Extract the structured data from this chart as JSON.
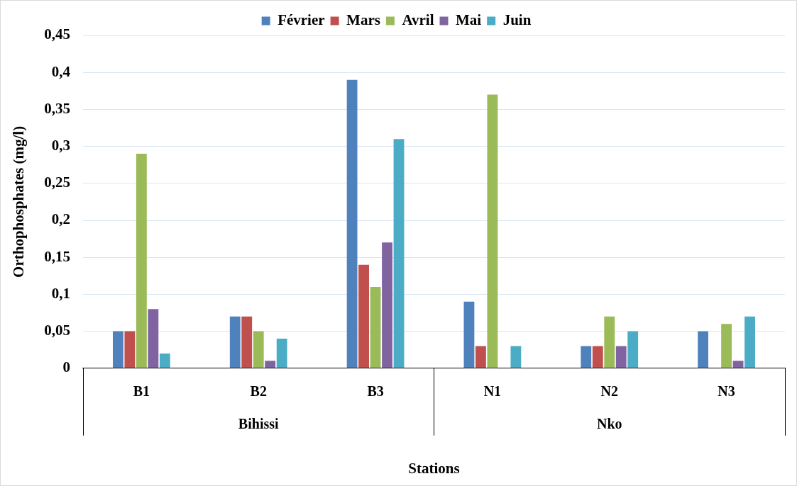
{
  "chart_data": {
    "type": "bar",
    "xlabel": "Stations",
    "ylabel": "Orthophosphates (mg/l)",
    "categories": [
      "B1",
      "B2",
      "B3",
      "N1",
      "N2",
      "N3"
    ],
    "series": [
      {
        "name": "Février",
        "color": "#4f81bd",
        "values": [
          0.05,
          0.07,
          0.39,
          0.09,
          0.03,
          0.05
        ]
      },
      {
        "name": "Mars",
        "color": "#c0504d",
        "values": [
          0.05,
          0.07,
          0.14,
          0.03,
          0.03,
          null
        ]
      },
      {
        "name": "Avril",
        "color": "#9bbb59",
        "values": [
          0.29,
          0.05,
          0.11,
          0.37,
          0.07,
          0.06
        ]
      },
      {
        "name": "Mai",
        "color": "#8064a2",
        "values": [
          0.08,
          0.01,
          0.17,
          null,
          0.03,
          0.01
        ]
      },
      {
        "name": "Juin",
        "color": "#4bacc6",
        "values": [
          0.02,
          0.04,
          0.31,
          0.03,
          0.05,
          0.07
        ]
      }
    ],
    "ylim": [
      0,
      0.45
    ],
    "yticks": [
      {
        "value": 0,
        "label": "0"
      },
      {
        "value": 0.05,
        "label": "0,05"
      },
      {
        "value": 0.1,
        "label": "0,1"
      },
      {
        "value": 0.15,
        "label": "0,15"
      },
      {
        "value": 0.2,
        "label": "0,2"
      },
      {
        "value": 0.25,
        "label": "0,25"
      },
      {
        "value": 0.3,
        "label": "0,3"
      },
      {
        "value": 0.35,
        "label": "0,35"
      },
      {
        "value": 0.4,
        "label": "0,4"
      },
      {
        "value": 0.45,
        "label": "0,45"
      }
    ],
    "grid": "y",
    "legend": "top",
    "annotations": [
      "Bihissi",
      "Nko"
    ]
  }
}
